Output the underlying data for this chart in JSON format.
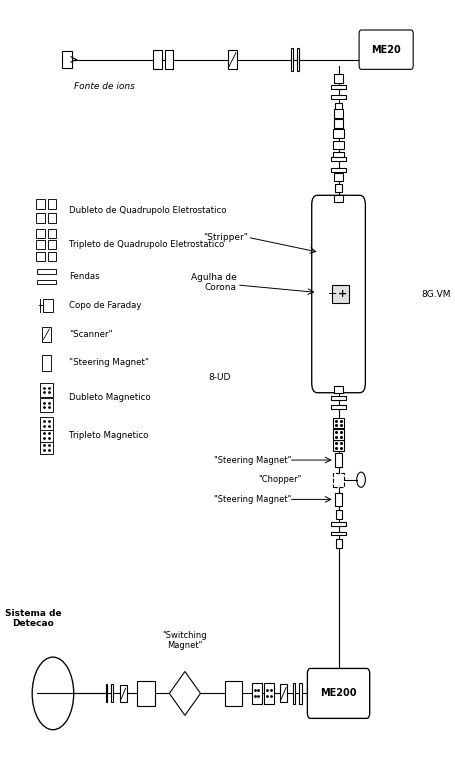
{
  "fig_width": 4.56,
  "fig_height": 7.62,
  "dpi": 100,
  "bg_color": "white",
  "line_color": "black",
  "lw": 0.8,
  "me20_label": "ME20",
  "me200_label": "ME200",
  "labels": {
    "fonte": "Fonte de ions",
    "dubleto_e": "Dubleto de Quadrupolo Eletrostatico",
    "tripleto_e": "Tripleto de Quadrupolo Eletrostatico",
    "fendas": "Fendas",
    "faraday": "Copo de Faraday",
    "scanner": "\"Scanner\"",
    "steering": "\"Steering Magnet\"",
    "dubleto_m": "Dubleto Magnetico",
    "tripleto_m": "Tripleto Magnetico",
    "stripper": "\"Stripper\"",
    "agulha": "Agulha de\nCorona",
    "ud8": "8-UD",
    "gvm": "8G.VM",
    "steering1": "\"Steering Magnet\"",
    "chopper": "\"Chopper\"",
    "steering2": "\"Steering Magnet\"",
    "sistema": "Sistema de\nDetecao",
    "switching": "\"Switching\nMagnet\""
  }
}
